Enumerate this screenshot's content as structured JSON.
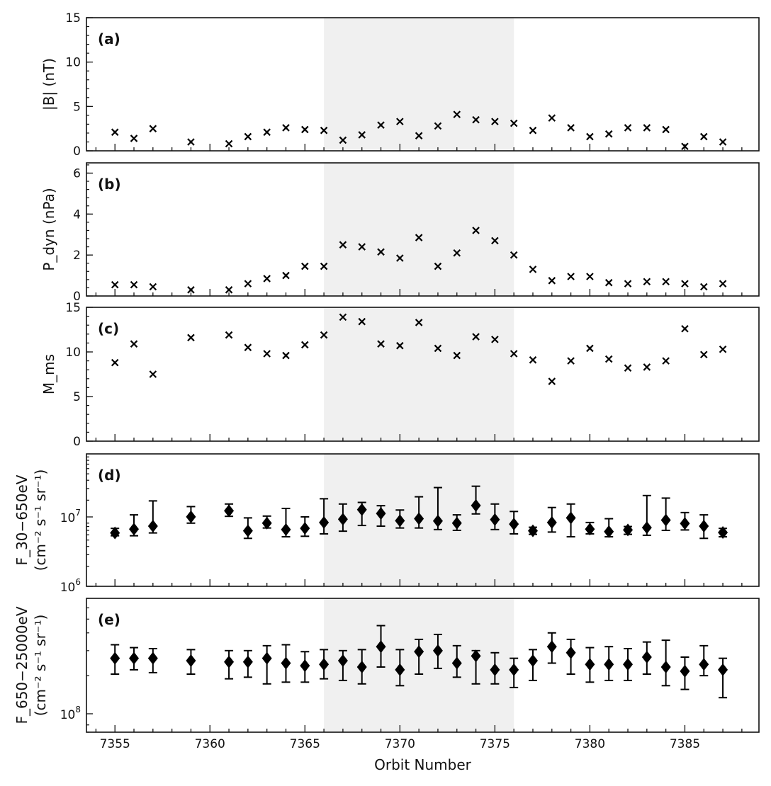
{
  "chart_data": [
    {
      "id": "a",
      "type": "scatter",
      "panel_label": "(a)",
      "ylabel": "|B| (nT)",
      "yscale": "linear",
      "ylim": [
        0,
        15
      ],
      "yticks": [
        "0",
        "5",
        "10",
        "15"
      ],
      "marker": "x",
      "x": [
        7355,
        7356,
        7357,
        7359,
        7361,
        7362,
        7363,
        7364,
        7365,
        7366,
        7367,
        7368,
        7369,
        7370,
        7371,
        7372,
        7373,
        7374,
        7375,
        7376,
        7377,
        7378,
        7379,
        7380,
        7381,
        7382,
        7383,
        7384,
        7385,
        7386,
        7387
      ],
      "y": [
        2.1,
        1.4,
        2.5,
        1.0,
        0.8,
        1.6,
        2.1,
        2.6,
        2.4,
        2.3,
        1.2,
        1.8,
        2.9,
        3.3,
        1.7,
        2.8,
        4.1,
        3.5,
        3.3,
        3.1,
        2.3,
        3.7,
        2.6,
        1.6,
        1.9,
        2.6,
        2.6,
        2.4,
        0.5,
        1.6,
        1.0
      ]
    },
    {
      "id": "b",
      "type": "scatter",
      "panel_label": "(b)",
      "ylabel": "P_dyn (nPa)",
      "yscale": "linear",
      "ylim": [
        0,
        6.5
      ],
      "yticks": [
        "0",
        "2",
        "4",
        "6"
      ],
      "marker": "x",
      "x": [
        7355,
        7356,
        7357,
        7359,
        7361,
        7362,
        7363,
        7364,
        7365,
        7366,
        7367,
        7368,
        7369,
        7370,
        7371,
        7372,
        7373,
        7374,
        7375,
        7376,
        7377,
        7378,
        7379,
        7380,
        7381,
        7382,
        7383,
        7384,
        7385,
        7386,
        7387
      ],
      "y": [
        0.55,
        0.55,
        0.45,
        0.3,
        0.3,
        0.6,
        0.85,
        1.0,
        1.45,
        1.45,
        2.5,
        2.4,
        2.15,
        1.85,
        2.85,
        1.45,
        2.1,
        3.2,
        2.7,
        2.0,
        1.3,
        0.75,
        0.95,
        0.95,
        0.65,
        0.6,
        0.7,
        0.7,
        0.6,
        0.45,
        0.6
      ]
    },
    {
      "id": "c",
      "type": "scatter",
      "panel_label": "(c)",
      "ylabel": "M_ms",
      "yscale": "linear",
      "ylim": [
        0,
        15
      ],
      "yticks": [
        "0",
        "5",
        "10",
        "15"
      ],
      "marker": "x",
      "x": [
        7355,
        7356,
        7357,
        7359,
        7361,
        7362,
        7363,
        7364,
        7365,
        7366,
        7367,
        7368,
        7369,
        7370,
        7371,
        7372,
        7373,
        7374,
        7375,
        7376,
        7377,
        7378,
        7379,
        7380,
        7381,
        7382,
        7383,
        7384,
        7385,
        7386,
        7387
      ],
      "y": [
        8.8,
        10.9,
        7.5,
        11.6,
        11.9,
        10.5,
        9.8,
        9.6,
        10.8,
        11.9,
        13.9,
        13.4,
        10.9,
        10.7,
        13.3,
        10.4,
        9.6,
        11.7,
        11.4,
        9.8,
        9.1,
        6.7,
        9.0,
        10.4,
        9.2,
        8.2,
        8.3,
        9.0,
        12.6,
        9.7,
        10.3
      ]
    },
    {
      "id": "d",
      "type": "scatter",
      "panel_label": "(d)",
      "ylabel_line1": "F_30−650eV",
      "ylabel_line2": "(cm⁻² s⁻¹ sr⁻¹)",
      "yscale": "log",
      "ylim": [
        1000000.0,
        100000000.0
      ],
      "yticks": [
        {
          "base": "10",
          "exp": "6"
        },
        {
          "base": "10",
          "exp": "7"
        }
      ],
      "marker": "diamond",
      "x": [
        7355,
        7356,
        7357,
        7359,
        7361,
        7362,
        7363,
        7364,
        7365,
        7366,
        7367,
        7368,
        7369,
        7370,
        7371,
        7372,
        7373,
        7374,
        7375,
        7376,
        7377,
        7378,
        7379,
        7380,
        7381,
        7382,
        7383,
        7384,
        7385,
        7386,
        7387
      ],
      "y": [
        6400000.0,
        7300000.0,
        8100000.0,
        11200000.0,
        13800000.0,
        6900000.0,
        9000000.0,
        7200000.0,
        7500000.0,
        9200000.0,
        10300000.0,
        14400000.0,
        12600000.0,
        9800000.0,
        10500000.0,
        9700000.0,
        9000000.0,
        16600000.0,
        10200000.0,
        8700000.0,
        6900000.0,
        9200000.0,
        10800000.0,
        7300000.0,
        6700000.0,
        7100000.0,
        7700000.0,
        10000000.0,
        8900000.0,
        8100000.0,
        6500000.0
      ],
      "y_upper": [
        7500000.0,
        12000000.0,
        19500000.0,
        16000000.0,
        17500000.0,
        10800000.0,
        11500000.0,
        15000000.0,
        11200000.0,
        21000000.0,
        17500000.0,
        18500000.0,
        16500000.0,
        14200000.0,
        22500000.0,
        31000000.0,
        12000000.0,
        32500000.0,
        17500000.0,
        13500000.0,
        7800000.0,
        15500000.0,
        17500000.0,
        9200000.0,
        10500000.0,
        8000000.0,
        23500000.0,
        21500000.0,
        13000000.0,
        12000000.0,
        7500000.0
      ],
      "y_lower": [
        5800000.0,
        5800000.0,
        6400000.0,
        9000000.0,
        11400000.0,
        5300000.0,
        7600000.0,
        5600000.0,
        5700000.0,
        6200000.0,
        6800000.0,
        8300000.0,
        8100000.0,
        7600000.0,
        7600000.0,
        7200000.0,
        7000000.0,
        12400000.0,
        7200000.0,
        6200000.0,
        6100000.0,
        6600000.0,
        5600000.0,
        6200000.0,
        5600000.0,
        6100000.0,
        5900000.0,
        7000000.0,
        7100000.0,
        5300000.0,
        5600000.0
      ]
    },
    {
      "id": "e",
      "type": "scatter",
      "panel_label": "(e)",
      "ylabel_line1": "F_650−25000eV",
      "ylabel_line2": "(cm⁻² s⁻¹ sr⁻¹)",
      "yscale": "log",
      "ylim": [
        80000000.0,
        700000000.0
      ],
      "yticks": [
        {
          "base": "10",
          "exp": "8"
        }
      ],
      "marker": "diamond",
      "x": [
        7355,
        7356,
        7357,
        7359,
        7361,
        7362,
        7363,
        7364,
        7365,
        7366,
        7367,
        7368,
        7369,
        7370,
        7371,
        7372,
        7373,
        7374,
        7375,
        7376,
        7377,
        7378,
        7379,
        7380,
        7381,
        7382,
        7383,
        7384,
        7385,
        7386,
        7387
      ],
      "y": [
        265000000.0,
        265000000.0,
        265000000.0,
        255000000.0,
        250000000.0,
        250000000.0,
        265000000.0,
        245000000.0,
        235000000.0,
        240000000.0,
        255000000.0,
        230000000.0,
        320000000.0,
        220000000.0,
        295000000.0,
        300000000.0,
        245000000.0,
        275000000.0,
        220000000.0,
        220000000.0,
        255000000.0,
        320000000.0,
        290000000.0,
        240000000.0,
        240000000.0,
        240000000.0,
        270000000.0,
        230000000.0,
        215000000.0,
        240000000.0,
        220000000.0
      ],
      "y_upper": [
        330000000.0,
        315000000.0,
        310000000.0,
        305000000.0,
        300000000.0,
        300000000.0,
        325000000.0,
        330000000.0,
        295000000.0,
        305000000.0,
        300000000.0,
        305000000.0,
        450000000.0,
        305000000.0,
        360000000.0,
        390000000.0,
        325000000.0,
        300000000.0,
        290000000.0,
        265000000.0,
        305000000.0,
        400000000.0,
        360000000.0,
        315000000.0,
        320000000.0,
        310000000.0,
        345000000.0,
        355000000.0,
        270000000.0,
        325000000.0,
        265000000.0
      ],
      "y_lower": [
        205000000.0,
        220000000.0,
        210000000.0,
        205000000.0,
        190000000.0,
        195000000.0,
        175000000.0,
        180000000.0,
        180000000.0,
        190000000.0,
        185000000.0,
        175000000.0,
        230000000.0,
        170000000.0,
        205000000.0,
        225000000.0,
        195000000.0,
        175000000.0,
        175000000.0,
        165000000.0,
        185000000.0,
        245000000.0,
        205000000.0,
        180000000.0,
        185000000.0,
        185000000.0,
        205000000.0,
        170000000.0,
        160000000.0,
        200000000.0,
        140000000.0
      ]
    }
  ],
  "shared": {
    "xlabel": "Orbit Number",
    "xlim": [
      7353.5,
      7388.9
    ],
    "xticks": [
      "7355",
      "7360",
      "7365",
      "7370",
      "7375",
      "7380",
      "7385"
    ],
    "shaded_orbit_range": [
      7366,
      7376
    ],
    "colors": {
      "marker": "#000000",
      "shade": "#f0f0f0",
      "axis": "#111111"
    }
  }
}
